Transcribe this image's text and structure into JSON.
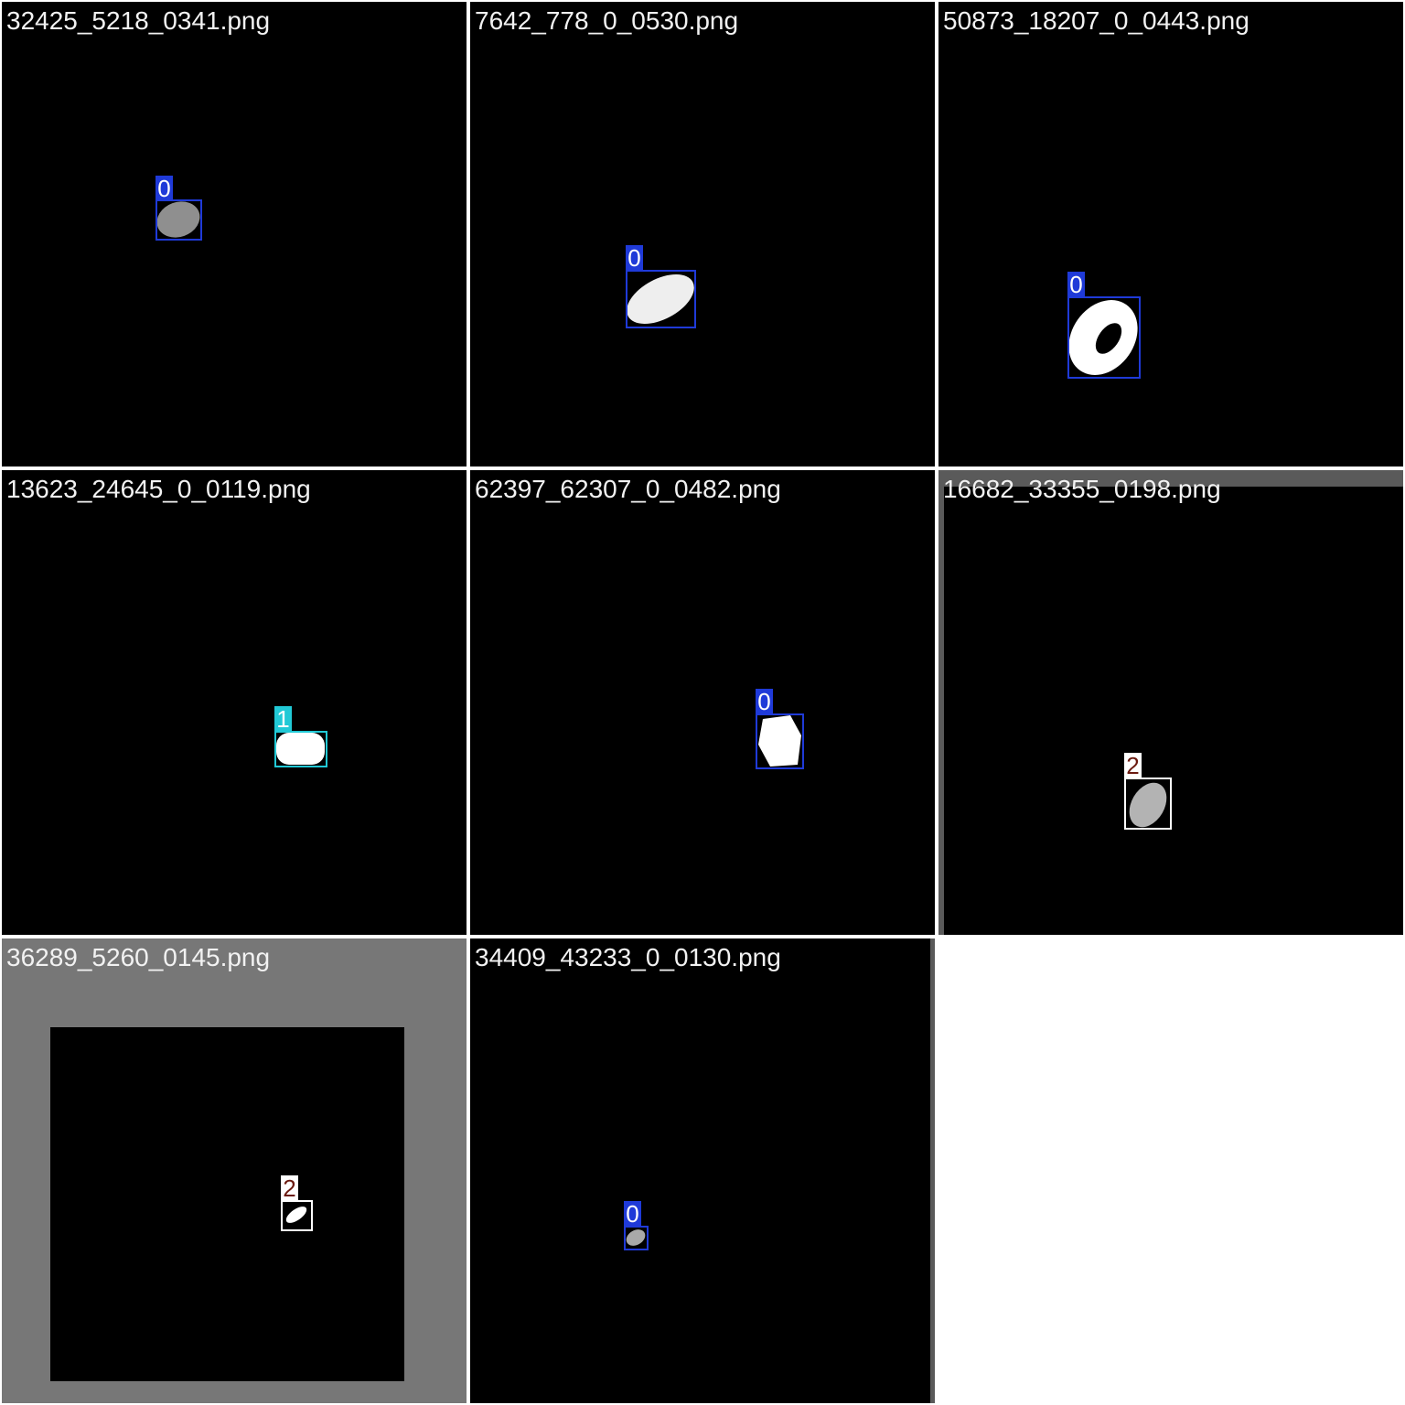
{
  "tiles": [
    {
      "filename": "32425_5218_0341.png",
      "label": "0",
      "class_color": "#1f3ad8"
    },
    {
      "filename": "7642_778_0_0530.png",
      "label": "0",
      "class_color": "#1f3ad8"
    },
    {
      "filename": "50873_18207_0_0443.png",
      "label": "0",
      "class_color": "#1f3ad8"
    },
    {
      "filename": "13623_24645_0_0119.png",
      "label": "1",
      "class_color": "#21c9d6"
    },
    {
      "filename": "62397_62307_0_0482.png",
      "label": "0",
      "class_color": "#1f3ad8"
    },
    {
      "filename": "16682_33355_0198.png",
      "label": "2",
      "class_color": "#ffffff"
    },
    {
      "filename": "36289_5260_0145.png",
      "label": "2",
      "class_color": "#ffffff"
    },
    {
      "filename": "34409_43233_0_0130.png",
      "label": "0",
      "class_color": "#1f3ad8"
    }
  ],
  "colors": {
    "background": "#000000",
    "grid_gap": "#ffffff",
    "padding_gray": "#777777",
    "label_text_class0": "#ffffff",
    "label_text_class1": "#ffffff",
    "label_text_class2": "#6b1a10"
  }
}
